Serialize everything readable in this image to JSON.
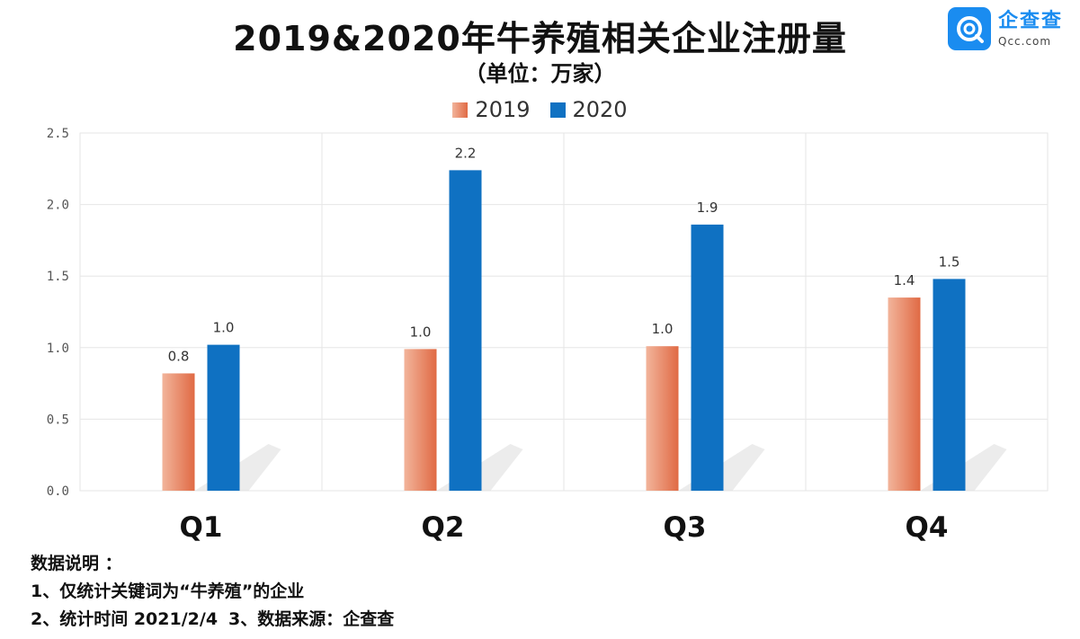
{
  "header": {
    "title": "2019&2020年牛养殖相关企业注册量",
    "subtitle": "（单位：万家）"
  },
  "logo": {
    "name": "企查查",
    "domain": "Qcc.com"
  },
  "colors": {
    "y2019_light": "#f2b49b",
    "y2019_dark": "#e06a44",
    "y2020": "#0f71c2",
    "grid": "#e6e6e6"
  },
  "chart_data": {
    "type": "bar",
    "categories": [
      "Q1",
      "Q2",
      "Q3",
      "Q4"
    ],
    "series": [
      {
        "name": "2019",
        "values": [
          0.82,
          0.99,
          1.01,
          1.35
        ],
        "labels": [
          "0.8",
          "1.0",
          "1.0",
          "1.4"
        ]
      },
      {
        "name": "2020",
        "values": [
          1.02,
          2.24,
          1.86,
          1.48
        ],
        "labels": [
          "1.0",
          "2.2",
          "1.9",
          "1.5"
        ]
      }
    ],
    "yticks": [
      "0.0",
      "0.5",
      "1.0",
      "1.5",
      "2.0",
      "2.5"
    ],
    "ylim": [
      0,
      2.5
    ],
    "grid": true,
    "legend": "top-center",
    "title": "2019&2020年牛养殖相关企业注册量",
    "ylabel": "单位：万家",
    "xlabel": ""
  },
  "notes": {
    "heading": "数据说明 ：",
    "line1": "1、仅统计关键词为“牛养殖”的企业",
    "line2a": "2、统计时间 2021/2/4",
    "line2b": "3、数据来源：企查查"
  }
}
